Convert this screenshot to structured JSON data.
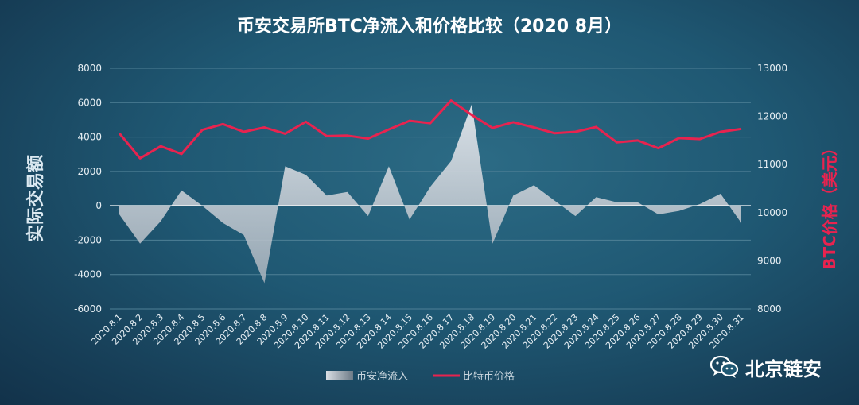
{
  "watermark": {
    "brand": "北京链安",
    "icon": "wechat-icon"
  },
  "colors": {
    "background": "#1f5873",
    "text": "#ffffff",
    "axis_text": "#e6eef3",
    "gridline": "#4f8096",
    "price_line": "#e8234f",
    "inflow_fill": "#cfd5dc",
    "y2_title": "#e8234f"
  },
  "chart_data": {
    "type": "area+line",
    "title": "币安交易所BTC净流入和价格比较（2020 8月）",
    "ylabel": "实际交易额",
    "y2label": "BTC价格（美元）",
    "ylim": [
      -6000,
      8000
    ],
    "yticks": [
      8000,
      6000,
      4000,
      2000,
      0,
      -2000,
      -4000,
      -6000
    ],
    "y2lim": [
      8000,
      13000
    ],
    "y2ticks": [
      13000,
      12000,
      11000,
      10000,
      9000,
      8000
    ],
    "grid": true,
    "legend_position": "bottom-center",
    "categories": [
      "2020.8.1",
      "2020.8.2",
      "2020.8.3",
      "2020.8.4",
      "2020.8.5",
      "2020.8.6",
      "2020.8.7",
      "2020.8.8",
      "2020.8.9",
      "2020.8.10",
      "2020.8.11",
      "2020.8.12",
      "2020.8.13",
      "2020.8.14",
      "2020.8.15",
      "2020.8.16",
      "2020.8.17",
      "2020.8.18",
      "2020.8.19",
      "2020.8.20",
      "2020.8.21",
      "2020.8.22",
      "2020.8.23",
      "2020.8.24",
      "2020.8.25",
      "2020.8.26",
      "2020.8.27",
      "2020.8.28",
      "2020.8.29",
      "2020.8.30",
      "2020.8.31"
    ],
    "series": [
      {
        "name": "币安净流入",
        "type": "area",
        "axis": "left",
        "values": [
          -500,
          -2200,
          -900,
          900,
          0,
          -1000,
          -1700,
          -4500,
          2300,
          1800,
          600,
          800,
          -600,
          2300,
          -800,
          1100,
          2600,
          5900,
          -2200,
          600,
          1200,
          300,
          -600,
          500,
          200,
          200,
          -500,
          -300,
          100,
          700,
          -1000
        ]
      },
      {
        "name": "比特币价格",
        "type": "line",
        "axis": "right",
        "values": [
          11650,
          11130,
          11380,
          11220,
          11720,
          11840,
          11680,
          11770,
          11640,
          11890,
          11590,
          11600,
          11540,
          11730,
          11910,
          11860,
          12330,
          12030,
          11760,
          11880,
          11770,
          11650,
          11680,
          11780,
          11460,
          11500,
          11340,
          11550,
          11530,
          11680,
          11740
        ]
      }
    ]
  }
}
